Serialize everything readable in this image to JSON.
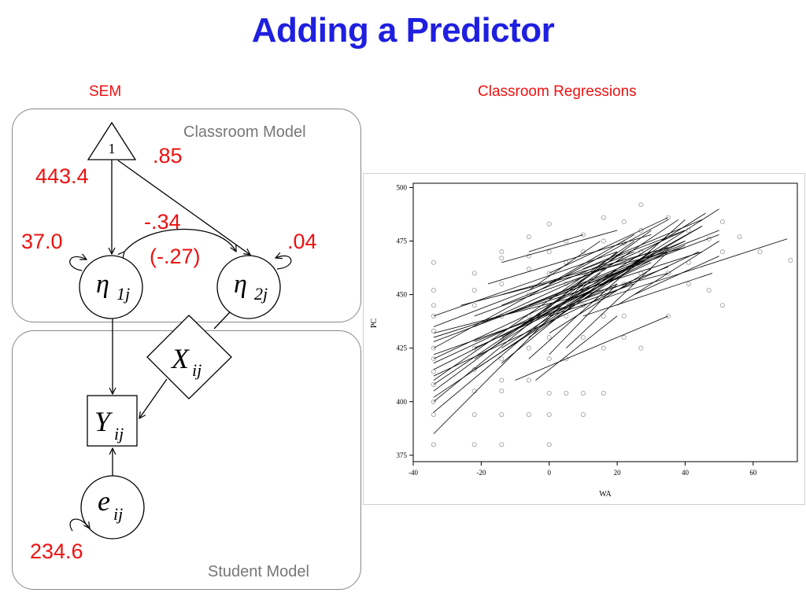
{
  "slide": {
    "title": "Adding a Predictor"
  },
  "sem": {
    "heading": "SEM",
    "classroom_model_label": "Classroom Model",
    "student_model_label": "Student Model",
    "constant_label": "1",
    "eta1": {
      "sym": "η",
      "sub": "1j"
    },
    "eta2": {
      "sym": "η",
      "sub": "2j"
    },
    "x": {
      "sym": "X",
      "sub": "ij"
    },
    "y": {
      "sym": "Y",
      "sub": "ij"
    },
    "e": {
      "sym": "e",
      "sub": "ij"
    },
    "values": {
      "mean_eta1": "443.4",
      "mean_eta2": ".85",
      "var_eta1": "37.0",
      "var_eta2": ".04",
      "cov": "-.34",
      "corr": "(-.27)",
      "var_e": "234.6"
    },
    "colors": {
      "values": "#ee1111",
      "panel_border": "#888888",
      "caption": "#777777"
    }
  },
  "regressions": {
    "heading": "Classroom Regressions"
  },
  "chart_data": {
    "type": "scatter",
    "title": "",
    "xlabel": "WA",
    "ylabel": "PC",
    "xlim": [
      -40,
      73
    ],
    "ylim": [
      372,
      502
    ],
    "xticks": [
      "-40",
      "-20",
      "0",
      "20",
      "40",
      "60"
    ],
    "yticks": [
      "375",
      "400",
      "425",
      "450",
      "475",
      "500"
    ],
    "points": [
      [
        -34,
        465
      ],
      [
        -34,
        452
      ],
      [
        -34,
        445
      ],
      [
        -34,
        440
      ],
      [
        -34,
        433
      ],
      [
        -34,
        425
      ],
      [
        -34,
        420
      ],
      [
        -34,
        414
      ],
      [
        -34,
        408
      ],
      [
        -34,
        400
      ],
      [
        -34,
        394
      ],
      [
        -34,
        380
      ],
      [
        -22,
        460
      ],
      [
        -22,
        452
      ],
      [
        -22,
        445
      ],
      [
        -22,
        425
      ],
      [
        -22,
        415
      ],
      [
        -22,
        405
      ],
      [
        -22,
        394
      ],
      [
        -22,
        380
      ],
      [
        -14,
        470
      ],
      [
        -14,
        467
      ],
      [
        -14,
        455
      ],
      [
        -14,
        440
      ],
      [
        -14,
        430
      ],
      [
        -14,
        420
      ],
      [
        -14,
        410
      ],
      [
        -14,
        405
      ],
      [
        -14,
        394
      ],
      [
        -14,
        380
      ],
      [
        -6,
        477
      ],
      [
        -6,
        468
      ],
      [
        -6,
        462
      ],
      [
        -6,
        450
      ],
      [
        -6,
        440
      ],
      [
        -6,
        425
      ],
      [
        -6,
        410
      ],
      [
        -6,
        394
      ],
      [
        0,
        483
      ],
      [
        0,
        470
      ],
      [
        0,
        460
      ],
      [
        0,
        445
      ],
      [
        0,
        430
      ],
      [
        0,
        420
      ],
      [
        0,
        404
      ],
      [
        0,
        394
      ],
      [
        0,
        380
      ],
      [
        5,
        475
      ],
      [
        5,
        465
      ],
      [
        5,
        455
      ],
      [
        5,
        440
      ],
      [
        5,
        420
      ],
      [
        5,
        404
      ],
      [
        10,
        478
      ],
      [
        10,
        470
      ],
      [
        10,
        460
      ],
      [
        10,
        445
      ],
      [
        10,
        430
      ],
      [
        10,
        404
      ],
      [
        10,
        394
      ],
      [
        16,
        486
      ],
      [
        16,
        475
      ],
      [
        16,
        462
      ],
      [
        16,
        450
      ],
      [
        16,
        440
      ],
      [
        16,
        425
      ],
      [
        16,
        404
      ],
      [
        22,
        484
      ],
      [
        22,
        474
      ],
      [
        22,
        466
      ],
      [
        22,
        455
      ],
      [
        22,
        440
      ],
      [
        22,
        430
      ],
      [
        27,
        492
      ],
      [
        27,
        480
      ],
      [
        27,
        470
      ],
      [
        27,
        460
      ],
      [
        27,
        425
      ],
      [
        35,
        486
      ],
      [
        35,
        470
      ],
      [
        35,
        460
      ],
      [
        35,
        440
      ],
      [
        41,
        480
      ],
      [
        41,
        465
      ],
      [
        41,
        455
      ],
      [
        47,
        476
      ],
      [
        47,
        452
      ],
      [
        51,
        484
      ],
      [
        51,
        470
      ],
      [
        51,
        445
      ],
      [
        56,
        477
      ],
      [
        62,
        470
      ],
      [
        71,
        466
      ]
    ],
    "lines": [
      [
        -34,
        415,
        35,
        470
      ],
      [
        -34,
        405,
        30,
        480
      ],
      [
        -34,
        420,
        40,
        475
      ],
      [
        -34,
        425,
        35,
        485
      ],
      [
        -34,
        430,
        45,
        470
      ],
      [
        -34,
        410,
        25,
        475
      ],
      [
        -34,
        435,
        40,
        480
      ],
      [
        -34,
        400,
        20,
        470
      ],
      [
        -34,
        385,
        10,
        455
      ],
      [
        -34,
        395,
        15,
        460
      ],
      [
        -34,
        440,
        20,
        470
      ],
      [
        -34,
        428,
        50,
        478
      ],
      [
        -34,
        418,
        30,
        465
      ],
      [
        -34,
        412,
        44,
        470
      ],
      [
        -34,
        408,
        38,
        485
      ],
      [
        -34,
        422,
        25,
        455
      ],
      [
        -34,
        432,
        35,
        460
      ],
      [
        -34,
        402,
        28,
        468
      ],
      [
        -22,
        435,
        40,
        480
      ],
      [
        -22,
        420,
        46,
        488
      ],
      [
        -22,
        440,
        30,
        470
      ],
      [
        -22,
        428,
        35,
        463
      ],
      [
        -22,
        415,
        30,
        468
      ],
      [
        -22,
        425,
        20,
        455
      ],
      [
        -14,
        440,
        40,
        475
      ],
      [
        -14,
        430,
        45,
        482
      ],
      [
        -14,
        445,
        25,
        470
      ],
      [
        -14,
        418,
        20,
        462
      ],
      [
        -14,
        450,
        35,
        472
      ],
      [
        -14,
        425,
        50,
        490
      ],
      [
        -6,
        445,
        50,
        480
      ],
      [
        -6,
        430,
        30,
        470
      ],
      [
        -6,
        420,
        40,
        485
      ],
      [
        -6,
        438,
        20,
        460
      ],
      [
        -6,
        452,
        15,
        475
      ],
      [
        0,
        440,
        70,
        476
      ],
      [
        0,
        448,
        40,
        473
      ],
      [
        0,
        432,
        30,
        462
      ],
      [
        0,
        455,
        25,
        478
      ],
      [
        0,
        422,
        20,
        455
      ],
      [
        5,
        425,
        35,
        470
      ],
      [
        5,
        445,
        45,
        482
      ],
      [
        5,
        452,
        22,
        470
      ],
      [
        -14,
        465,
        20,
        480
      ],
      [
        -6,
        470,
        10,
        478
      ],
      [
        0,
        460,
        35,
        486
      ],
      [
        10,
        462,
        45,
        485
      ],
      [
        10,
        440,
        48,
        460
      ],
      [
        -10,
        410,
        35,
        440
      ],
      [
        -4,
        410,
        20,
        440
      ],
      [
        20,
        445,
        50,
        475
      ],
      [
        25,
        450,
        50,
        468
      ],
      [
        -26,
        445,
        40,
        472
      ],
      [
        -18,
        455,
        30,
        478
      ]
    ]
  }
}
